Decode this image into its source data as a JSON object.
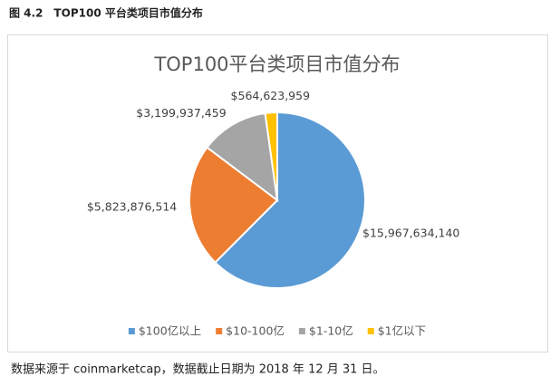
{
  "caption": "图 4.2　TOP100 平台类项目市值分布",
  "chart_data": {
    "type": "pie",
    "title": "TOP100平台类项目市值分布",
    "categories": [
      "$100亿以上",
      "$10-100亿",
      "$1-10亿",
      "$1亿以下"
    ],
    "values": [
      15967634140,
      5823876514,
      3199937459,
      564623959
    ],
    "value_labels": [
      "$15,967,634,140",
      "$5,823,876,514",
      "$3,199,937,459",
      "$564,623,959"
    ],
    "colors": [
      "#5b9bd5",
      "#ed7d31",
      "#a5a5a5",
      "#ffc000"
    ],
    "legend": "bottom"
  },
  "source": "数据来源于 coinmarketcap，数据截止日期为 2018 年 12 月 31 日。"
}
